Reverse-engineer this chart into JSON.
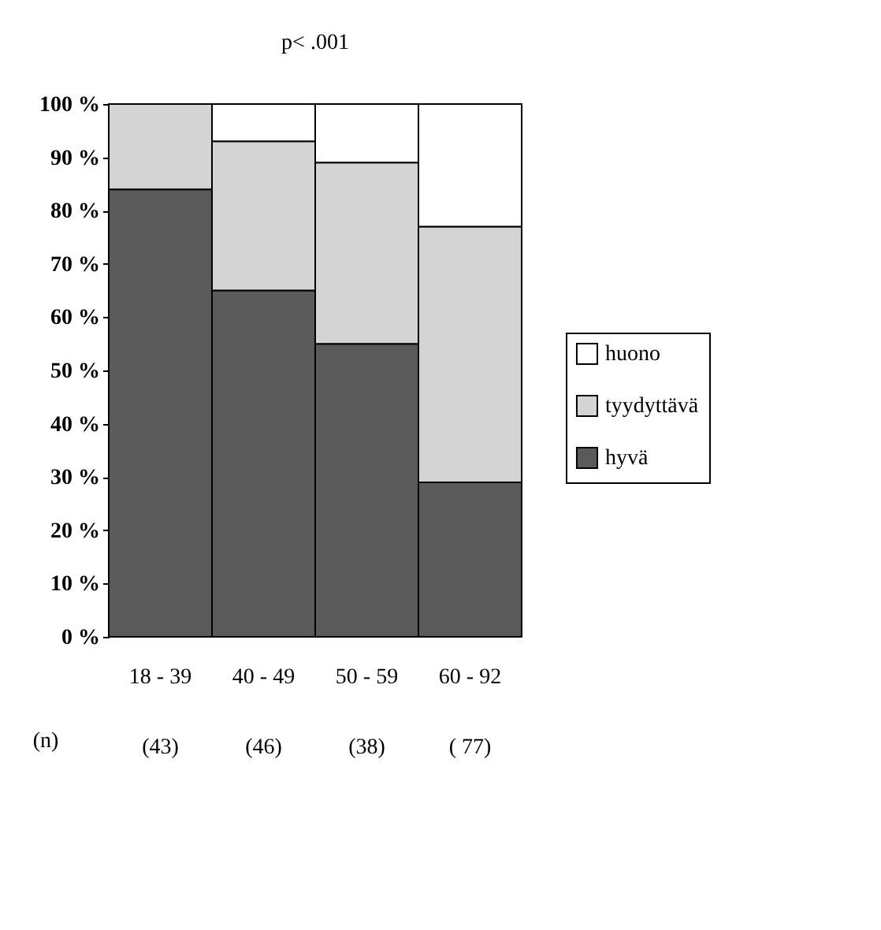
{
  "chart_data": {
    "type": "bar",
    "title": "p< .001",
    "stacked": true,
    "categories": [
      "18 - 39",
      "40 - 49",
      "50 - 59",
      "60 - 92"
    ],
    "series": [
      {
        "name": "hyvä",
        "color": "#5a5a5a",
        "values": [
          84,
          65,
          55,
          29
        ]
      },
      {
        "name": "tyydyttävä",
        "color": "#d4d4d4",
        "values": [
          16,
          28,
          34,
          48
        ]
      },
      {
        "name": "huono",
        "color": "#ffffff",
        "values": [
          null,
          7,
          11,
          23
        ]
      }
    ],
    "ylim": [
      0,
      100
    ],
    "yticks": [
      {
        "value": 0,
        "label": "0 %"
      },
      {
        "value": 10,
        "label": "10 %"
      },
      {
        "value": 20,
        "label": "20 %"
      },
      {
        "value": 30,
        "label": "30 %"
      },
      {
        "value": 40,
        "label": "40 %"
      },
      {
        "value": 50,
        "label": "50 %"
      },
      {
        "value": 60,
        "label": "60 %"
      },
      {
        "value": 70,
        "label": "70 %"
      },
      {
        "value": 80,
        "label": "80 %"
      },
      {
        "value": 90,
        "label": "90 %"
      },
      {
        "value": 100,
        "label": "100 %"
      }
    ],
    "legend": "right",
    "grid": false,
    "annotations": [
      "(n)",
      "(43)",
      "(46)",
      "(38)",
      "( 77)"
    ]
  }
}
